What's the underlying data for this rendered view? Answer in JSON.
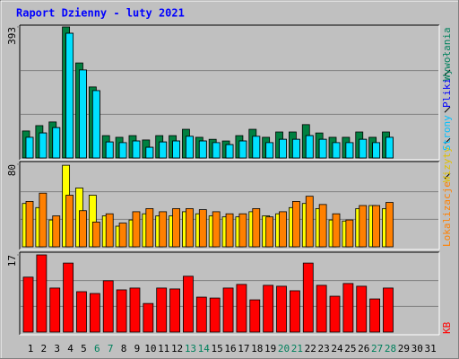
{
  "chart_data": {
    "type": "bar",
    "title": "Raport Dzienny -  luty 2021",
    "categories": [
      "1",
      "2",
      "3",
      "4",
      "5",
      "6",
      "7",
      "8",
      "9",
      "10",
      "11",
      "12",
      "13",
      "14",
      "15",
      "16",
      "17",
      "18",
      "19",
      "20",
      "21",
      "22",
      "23",
      "24",
      "25",
      "26",
      "27",
      "28",
      "29",
      "30",
      "31"
    ],
    "category_colors": [
      "#000000",
      "#000000",
      "#000000",
      "#000000",
      "#000000",
      "#00805c",
      "#00805c",
      "#000000",
      "#000000",
      "#000000",
      "#000000",
      "#000000",
      "#00805c",
      "#00805c",
      "#000000",
      "#000000",
      "#000000",
      "#000000",
      "#000000",
      "#00805c",
      "#00805c",
      "#000000",
      "#000000",
      "#000000",
      "#000000",
      "#000000",
      "#00805c",
      "#00805c",
      "#000000",
      "#000000",
      "#000000"
    ],
    "panels": [
      {
        "ylim": [
          0,
          393
        ],
        "yticks": [
          393
        ],
        "series": [
          {
            "name": "Wywołania",
            "color": "#008040",
            "legend_color": "#00805c",
            "values": [
              81,
              97,
              108,
              393,
              285,
              213,
              67,
              62,
              67,
              54,
              67,
              67,
              86,
              62,
              56,
              51,
              67,
              86,
              62,
              78,
              78,
              100,
              75,
              62,
              62,
              78,
              62,
              78,
              null,
              null,
              null
            ]
          },
          {
            "name": "Pliki",
            "color": "#0080ff",
            "legend_color": "#0000ff",
            "values": [
              62,
              75,
              91,
              374,
              264,
              202,
              48,
              46,
              51,
              32,
              48,
              51,
              65,
              51,
              46,
              40,
              51,
              65,
              46,
              56,
              56,
              67,
              56,
              46,
              46,
              56,
              46,
              62,
              null,
              null,
              null
            ]
          },
          {
            "name": "Strony",
            "color": "#00e0ff",
            "legend_color": "#00c0ff",
            "values": [
              62,
              75,
              91,
              374,
              264,
              202,
              48,
              46,
              51,
              32,
              48,
              51,
              65,
              51,
              46,
              40,
              51,
              65,
              46,
              56,
              56,
              67,
              56,
              46,
              46,
              56,
              46,
              62,
              null,
              null,
              null
            ]
          }
        ]
      },
      {
        "ylim": [
          0,
          80
        ],
        "yticks": [
          80
        ],
        "series": [
          {
            "name": "Wizyty",
            "color": "#ffff00",
            "legend_color": "#e0c000",
            "values": [
              42,
              38,
              26,
              79,
              57,
              50,
              30,
              20,
              26,
              32,
              30,
              30,
              34,
              32,
              30,
              29,
              29,
              34,
              30,
              32,
              38,
              42,
              37,
              26,
              25,
              37,
              40,
              37,
              null,
              null,
              null
            ]
          },
          {
            "name": "Lokalizacje",
            "color": "#ff8000",
            "legend_color": "#ff8000",
            "values": [
              44,
              52,
              30,
              50,
              35,
              24,
              32,
              23,
              34,
              37,
              34,
              37,
              37,
              36,
              34,
              32,
              32,
              37,
              29,
              34,
              44,
              49,
              41,
              32,
              26,
              40,
              40,
              43,
              null,
              null,
              null
            ]
          }
        ]
      },
      {
        "ylim": [
          0,
          17
        ],
        "yticks": [
          17
        ],
        "series": [
          {
            "name": "KB",
            "color": "#ff0000",
            "legend_color": "#ff0000",
            "values": [
              12.1,
              17,
              9.7,
              15.2,
              8.9,
              8.5,
              11.3,
              9.3,
              9.7,
              6.3,
              9.7,
              9.5,
              12.3,
              7.7,
              7.5,
              9.7,
              10.5,
              7.1,
              10.3,
              10.1,
              9.1,
              15.2,
              10.3,
              7.9,
              10.7,
              10.1,
              7.3,
              9.7,
              null,
              null,
              null
            ]
          }
        ]
      }
    ]
  }
}
